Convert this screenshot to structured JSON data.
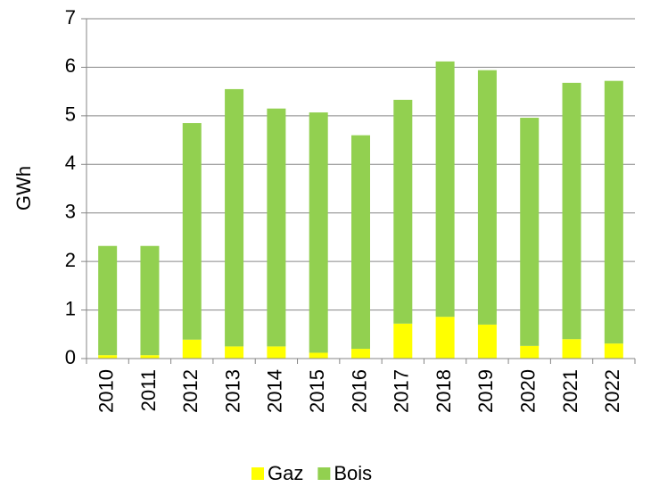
{
  "chart_data": {
    "type": "stacked_bar",
    "y_label": "GWh",
    "categories": [
      "2010",
      "2011",
      "2012",
      "2013",
      "2014",
      "2015",
      "2016",
      "2017",
      "2018",
      "2019",
      "2020",
      "2021",
      "2022"
    ],
    "series": [
      {
        "name": "Gaz",
        "color": "#ffff00",
        "values": [
          0.07,
          0.07,
          0.39,
          0.25,
          0.25,
          0.12,
          0.2,
          0.72,
          0.86,
          0.7,
          0.26,
          0.4,
          0.31
        ]
      },
      {
        "name": "Bois",
        "color": "#92d050",
        "values": [
          2.25,
          2.25,
          4.46,
          5.3,
          4.9,
          4.95,
          4.4,
          4.61,
          5.26,
          5.24,
          4.7,
          5.28,
          5.41
        ]
      }
    ],
    "ylim": [
      0,
      7
    ],
    "yticks": [
      0,
      1,
      2,
      3,
      4,
      5,
      6,
      7
    ],
    "grid": true,
    "legend": "bottom"
  }
}
